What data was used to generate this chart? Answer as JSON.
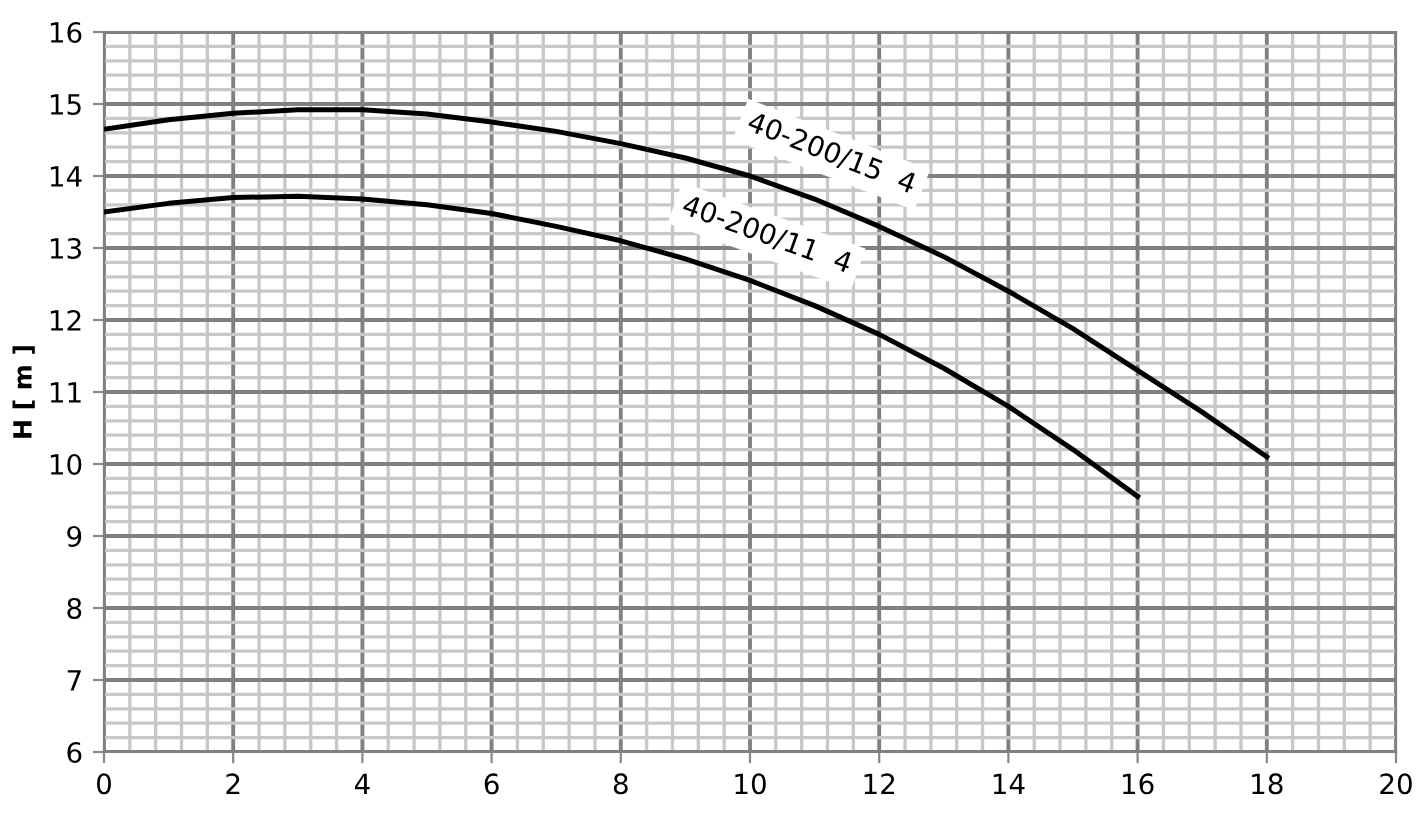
{
  "chart_data": {
    "type": "line",
    "ylabel": "H [ m ]",
    "xlim": [
      0,
      20
    ],
    "xticks": [
      0,
      2,
      4,
      6,
      8,
      10,
      12,
      14,
      16,
      18,
      20
    ],
    "ylim": [
      6,
      16
    ],
    "yticks": [
      6,
      7,
      8,
      9,
      10,
      11,
      12,
      13,
      14,
      15,
      16
    ],
    "grid": true,
    "legend": false,
    "marker": "none",
    "line_style": "solid",
    "series": [
      {
        "name": "40-200/15  4",
        "color": "#000000",
        "x": [
          0,
          1,
          2,
          3,
          4,
          5,
          6,
          7,
          8,
          9,
          10,
          11,
          12,
          13,
          14,
          15,
          16,
          17,
          18
        ],
        "values": [
          14.65,
          14.78,
          14.87,
          14.92,
          14.92,
          14.86,
          14.75,
          14.62,
          14.45,
          14.25,
          14.0,
          13.68,
          13.3,
          12.88,
          12.4,
          11.88,
          11.3,
          10.72,
          10.1
        ]
      },
      {
        "name": "40-200/11  4",
        "color": "#000000",
        "x": [
          0,
          1,
          2,
          3,
          4,
          5,
          6,
          7,
          8,
          9,
          10,
          11,
          12,
          13,
          14,
          15,
          16
        ],
        "values": [
          13.5,
          13.62,
          13.7,
          13.72,
          13.68,
          13.6,
          13.48,
          13.3,
          13.1,
          12.85,
          12.55,
          12.2,
          11.8,
          11.33,
          10.8,
          10.2,
          9.55
        ]
      }
    ]
  }
}
